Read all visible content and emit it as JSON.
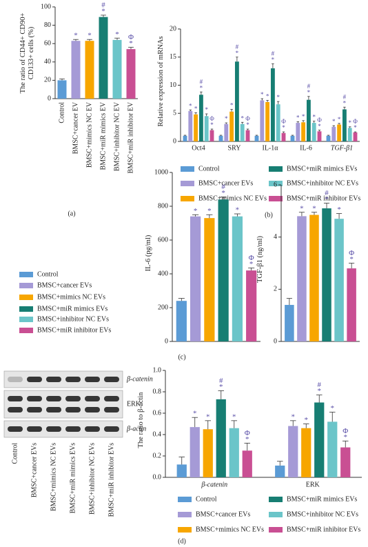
{
  "chart_data": [
    {
      "type": "bar",
      "panel": "(a)",
      "ylabel": "The ratio of CD44+ CD90+ CD133+ cells (%)",
      "categories": [
        "Control",
        "BMSC+cancer EV",
        "BMSC+mimics NC EV",
        "BMSC+miR mimics EV",
        "BMSC+inhibitor NC EV",
        "BMSC+miR inhibitor EV"
      ],
      "values": [
        20,
        63,
        63,
        89,
        64,
        54
      ],
      "errors": [
        1.5,
        1.5,
        1.5,
        2,
        2,
        2
      ],
      "colors": [
        "#5b9bd5",
        "#a59ad6",
        "#f7a600",
        "#177e73",
        "#6bc5c9",
        "#c94f93"
      ],
      "sig": [
        [],
        [
          "*"
        ],
        [
          "*"
        ],
        [
          "#",
          "*"
        ],
        [
          "*"
        ],
        [
          "Φ",
          "*"
        ]
      ],
      "ylim": [
        0,
        100
      ],
      "yticks": [
        0,
        20,
        40,
        60,
        80,
        100
      ],
      "legend": false
    },
    {
      "type": "grouped-bar",
      "panel": "(b)",
      "ylabel": "Relative expression of mRNAs",
      "categories": [
        "Oct4",
        "SRY",
        "IL-1α",
        "IL-6",
        "TGF-β1"
      ],
      "series": [
        {
          "name": "Control",
          "color": "#5b9bd5",
          "values": [
            1,
            1,
            1,
            1,
            1
          ],
          "errors": [
            0.1,
            0.1,
            0.1,
            0.1,
            0.1
          ],
          "sig": []
        },
        {
          "name": "BMSC+cancer EVs",
          "color": "#a59ad6",
          "values": [
            5.4,
            3.1,
            7.3,
            3.3,
            2.6
          ],
          "errors": [
            0.2,
            0.2,
            0.3,
            0.2,
            0.2
          ],
          "sig": [
            "*"
          ]
        },
        {
          "name": "BMSC+mimics NC EVs",
          "color": "#f7a600",
          "values": [
            4.8,
            5.3,
            7.0,
            3.4,
            3.0
          ],
          "errors": [
            0.3,
            0.4,
            0.3,
            0.3,
            0.2
          ],
          "sig": [
            "*"
          ]
        },
        {
          "name": "BMSC+miR mimics EVs",
          "color": "#177e73",
          "values": [
            8.3,
            14.2,
            13.0,
            7.4,
            5.7
          ],
          "errors": [
            0.5,
            0.8,
            0.8,
            0.6,
            0.4
          ],
          "sig": [
            "#",
            "*"
          ]
        },
        {
          "name": "BMSC+inhibitor NC EVs",
          "color": "#6bc5c9",
          "values": [
            4.5,
            3.1,
            6.6,
            3.3,
            2.4
          ],
          "errors": [
            0.4,
            0.3,
            0.5,
            0.3,
            0.2
          ],
          "sig": [
            "*"
          ]
        },
        {
          "name": "BMSC+miR inhibitor EVs",
          "color": "#c94f93",
          "values": [
            2.0,
            2.0,
            1.5,
            1.8,
            1.6
          ],
          "errors": [
            0.2,
            0.2,
            0.2,
            0.2,
            0.1
          ],
          "sig": [
            "Φ",
            "*"
          ]
        }
      ],
      "ylim": [
        0,
        20
      ],
      "yticks": [
        0,
        5,
        10,
        15,
        20
      ],
      "legend": "bottom"
    },
    {
      "type": "grouped-bar",
      "panel": "(c)",
      "ylabel": "IL-6 (pg/ml)",
      "categories": [
        null
      ],
      "series": [
        {
          "name": "Control",
          "color": "#5b9bd5",
          "values": [
            240
          ],
          "errors": [
            15
          ],
          "sig": []
        },
        {
          "name": "BMSC+cancer EVs",
          "color": "#a59ad6",
          "values": [
            740
          ],
          "errors": [
            10
          ],
          "sig": [
            "*"
          ]
        },
        {
          "name": "BMSC+mimics NC EVs",
          "color": "#f7a600",
          "values": [
            730
          ],
          "errors": [
            20
          ],
          "sig": [
            "*"
          ]
        },
        {
          "name": "BMSC+miR mimics EVs",
          "color": "#177e73",
          "values": [
            840
          ],
          "errors": [
            15
          ],
          "sig": [
            "#",
            "*"
          ]
        },
        {
          "name": "BMSC+inhibitor NC EVs",
          "color": "#6bc5c9",
          "values": [
            740
          ],
          "errors": [
            15
          ],
          "sig": [
            "*"
          ]
        },
        {
          "name": "BMSC+miR inhibitor EVs",
          "color": "#c94f93",
          "values": [
            420
          ],
          "errors": [
            15
          ],
          "sig": [
            "Φ",
            "*"
          ]
        }
      ],
      "ylim": [
        0,
        1000
      ],
      "yticks": [
        0,
        200,
        400,
        600,
        800,
        1000
      ],
      "legend": "left"
    },
    {
      "type": "grouped-bar",
      "ylabel": "TGF-β1 (ng/ml)",
      "categories": [
        null
      ],
      "series": [
        {
          "color": "#5b9bd5",
          "values": [
            1.4
          ],
          "errors": [
            0.25
          ],
          "sig": []
        },
        {
          "color": "#a59ad6",
          "values": [
            4.8
          ],
          "errors": [
            0.15
          ],
          "sig": [
            "*"
          ]
        },
        {
          "color": "#f7a600",
          "values": [
            4.85
          ],
          "errors": [
            0.1
          ],
          "sig": [
            "*"
          ]
        },
        {
          "color": "#177e73",
          "values": [
            5.1
          ],
          "errors": [
            0.2
          ],
          "sig": [
            "#",
            "*"
          ]
        },
        {
          "color": "#6bc5c9",
          "values": [
            4.7
          ],
          "errors": [
            0.2
          ],
          "sig": [
            "*"
          ]
        },
        {
          "color": "#c94f93",
          "values": [
            2.8
          ],
          "errors": [
            0.2
          ],
          "sig": [
            "Φ",
            "*"
          ]
        }
      ],
      "ylim": [
        0,
        6
      ],
      "yticks": [
        0,
        2,
        4,
        6
      ],
      "legend": false
    },
    {
      "type": "grouped-bar",
      "panel": "(d)",
      "ylabel": "The ratio to β-actin",
      "categories": [
        "β-catenin",
        "ERK"
      ],
      "series": [
        {
          "name": "Control",
          "color": "#5b9bd5",
          "values": [
            0.12,
            0.11
          ],
          "errors": [
            0.07,
            0.04
          ],
          "sig": []
        },
        {
          "name": "BMSC+cancer EVs",
          "color": "#a59ad6",
          "values": [
            0.47,
            0.48
          ],
          "errors": [
            0.09,
            0.05
          ],
          "sig": [
            "*"
          ]
        },
        {
          "name": "BMSC+mimics NC EVs",
          "color": "#f7a600",
          "values": [
            0.45,
            0.46
          ],
          "errors": [
            0.08,
            0.04
          ],
          "sig": [
            "*"
          ]
        },
        {
          "name": "BMSC+miR mimics EVs",
          "color": "#177e73",
          "values": [
            0.73,
            0.7
          ],
          "errors": [
            0.08,
            0.07
          ],
          "sig": [
            "#",
            "*"
          ]
        },
        {
          "name": "BMSC+inhibitor NC EVs",
          "color": "#6bc5c9",
          "values": [
            0.46,
            0.52
          ],
          "errors": [
            0.07,
            0.09
          ],
          "sig": [
            "*"
          ]
        },
        {
          "name": "BMSC+miR inhibitor EVs",
          "color": "#c94f93",
          "values": [
            0.25,
            0.28
          ],
          "errors": [
            0.07,
            0.06
          ],
          "sig": [
            "Φ",
            "*"
          ]
        }
      ],
      "ylim": [
        0,
        1
      ],
      "yticks": [
        {
          "value": 0,
          "label": "0.0"
        },
        0.2,
        0.4,
        0.6,
        0.8,
        {
          "value": 1,
          "label": "1.0"
        }
      ],
      "legend": "bottom"
    }
  ],
  "blot": {
    "bands": [
      "β-catenin",
      "ERK",
      "β-actin"
    ],
    "lanes": [
      "Control",
      "BMSC+cancer EVs",
      "BMSC+mimics NC EVs",
      "BMSC+miR mimics EVs",
      "BMSC+inhibitor NC EVs",
      "BMSC+miR inhibitor EVs"
    ]
  }
}
